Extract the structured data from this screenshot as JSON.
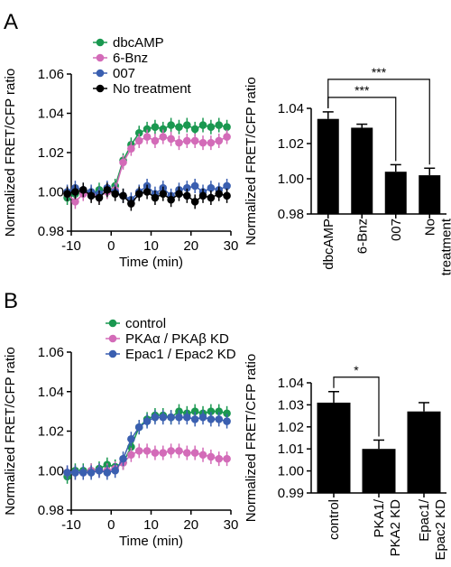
{
  "panels": {
    "a": "A",
    "b": "B"
  },
  "chart_data": [
    {
      "id": "A-time",
      "type": "line",
      "xlabel": "Time (min)",
      "ylabel": "Normalized FRET/CFP ratio",
      "xlim": [
        -10,
        30
      ],
      "ylim": [
        0.98,
        1.06
      ],
      "xticks": [
        "-10",
        "0",
        "10",
        "20",
        "30"
      ],
      "yticks": [
        "0.98",
        "1.00",
        "1.02",
        "1.04",
        "1.06"
      ],
      "legend_position": "top-left",
      "x": [
        -11,
        -9,
        -7,
        -5,
        -3,
        -1,
        1,
        3,
        5,
        7,
        9,
        11,
        13,
        15,
        17,
        19,
        21,
        23,
        25,
        27,
        29
      ],
      "series": [
        {
          "name": "dbcAMP",
          "color": "#1a9850",
          "values": [
            0.997,
            0.999,
            1.0,
            0.999,
            1.001,
            1.0,
            1.003,
            1.016,
            1.024,
            1.03,
            1.032,
            1.033,
            1.032,
            1.034,
            1.033,
            1.034,
            1.032,
            1.034,
            1.033,
            1.034,
            1.033
          ]
        },
        {
          "name": "6-Bnz",
          "color": "#d36bb8",
          "values": [
            0.999,
            0.995,
            0.999,
            0.999,
            0.998,
            1.0,
            1.001,
            1.015,
            1.022,
            1.026,
            1.028,
            1.026,
            1.028,
            1.027,
            1.025,
            1.026,
            1.026,
            1.025,
            1.025,
            1.026,
            1.028
          ]
        },
        {
          "name": "007",
          "color": "#3a5fb0",
          "values": [
            1.0,
            1.002,
            1.001,
            1.0,
            0.999,
            1.002,
            1.0,
            0.998,
            0.996,
            1.0,
            1.003,
            0.999,
            1.002,
            0.998,
            1.001,
            1.002,
            1.003,
            1.0,
            1.002,
            1.001,
            1.003
          ]
        },
        {
          "name": "No treatment",
          "color": "#000000",
          "values": [
            0.999,
            1.0,
            1.001,
            0.998,
            0.997,
            1.001,
            0.999,
            0.998,
            0.994,
            0.999,
            1.0,
            0.997,
            0.999,
            0.996,
            0.999,
            0.998,
            0.995,
            0.998,
            0.997,
            0.999,
            0.998
          ]
        }
      ]
    },
    {
      "id": "A-bar",
      "type": "bar",
      "ylabel": "Normalized FRET/CFP ratio",
      "ylim": [
        0.98,
        1.04
      ],
      "yticks": [
        "0.98",
        "1.00",
        "1.02",
        "1.04"
      ],
      "categories": [
        "dbcAMP",
        "6-Bnz",
        "007",
        "No\ntreatment"
      ],
      "values": [
        1.034,
        1.029,
        1.004,
        1.002
      ],
      "errors": [
        0.004,
        0.002,
        0.004,
        0.004
      ],
      "significance": [
        {
          "from": 0,
          "to": 2,
          "label": "***"
        },
        {
          "from": 0,
          "to": 3,
          "label": "***"
        }
      ]
    },
    {
      "id": "B-time",
      "type": "line",
      "xlabel": "Time (min)",
      "ylabel": "Normalized FRET/CFP ratio",
      "xlim": [
        -10,
        30
      ],
      "ylim": [
        0.98,
        1.06
      ],
      "xticks": [
        "-10",
        "0",
        "10",
        "20",
        "30"
      ],
      "yticks": [
        "0.98",
        "1.00",
        "1.02",
        "1.04",
        "1.06"
      ],
      "legend_position": "top-left",
      "x": [
        -11,
        -9,
        -7,
        -5,
        -3,
        -1,
        1,
        3,
        5,
        7,
        9,
        11,
        13,
        15,
        17,
        19,
        21,
        23,
        25,
        27,
        29
      ],
      "series": [
        {
          "name": "control",
          "color": "#1a9850",
          "values": [
            0.997,
            1.0,
            1.0,
            1.0,
            1.001,
            1.003,
            1.002,
            1.004,
            1.012,
            1.022,
            1.026,
            1.028,
            1.028,
            1.027,
            1.03,
            1.029,
            1.03,
            1.029,
            1.03,
            1.03,
            1.029
          ]
        },
        {
          "name": "PKAα / PKAβ KD",
          "color": "#d36bb8",
          "values": [
            0.999,
            0.999,
            0.999,
            1.0,
            1.0,
            1.0,
            1.001,
            1.004,
            1.008,
            1.01,
            1.01,
            1.009,
            1.009,
            1.01,
            1.01,
            1.009,
            1.009,
            1.008,
            1.007,
            1.006,
            1.006
          ]
        },
        {
          "name": "Epac1 / Epac2 KD",
          "color": "#3a5fb0",
          "values": [
            0.999,
            0.999,
            0.999,
            0.999,
            1.0,
            0.999,
            1.0,
            1.006,
            1.016,
            1.022,
            1.025,
            1.027,
            1.027,
            1.027,
            1.027,
            1.027,
            1.026,
            1.027,
            1.026,
            1.026,
            1.025
          ]
        }
      ]
    },
    {
      "id": "B-bar",
      "type": "bar",
      "ylabel": "Normalized FRET/CFP ratio",
      "ylim": [
        0.99,
        1.04
      ],
      "yticks": [
        "0.99",
        "1.00",
        "1.01",
        "1.02",
        "1.03",
        "1.04"
      ],
      "categories": [
        "control",
        "PKA1/\nPKA2 KD",
        "Epac1/\nEpac2 KD"
      ],
      "values": [
        1.031,
        1.01,
        1.027
      ],
      "errors": [
        0.005,
        0.004,
        0.004
      ],
      "significance": [
        {
          "from": 0,
          "to": 1,
          "label": "*"
        }
      ]
    }
  ]
}
